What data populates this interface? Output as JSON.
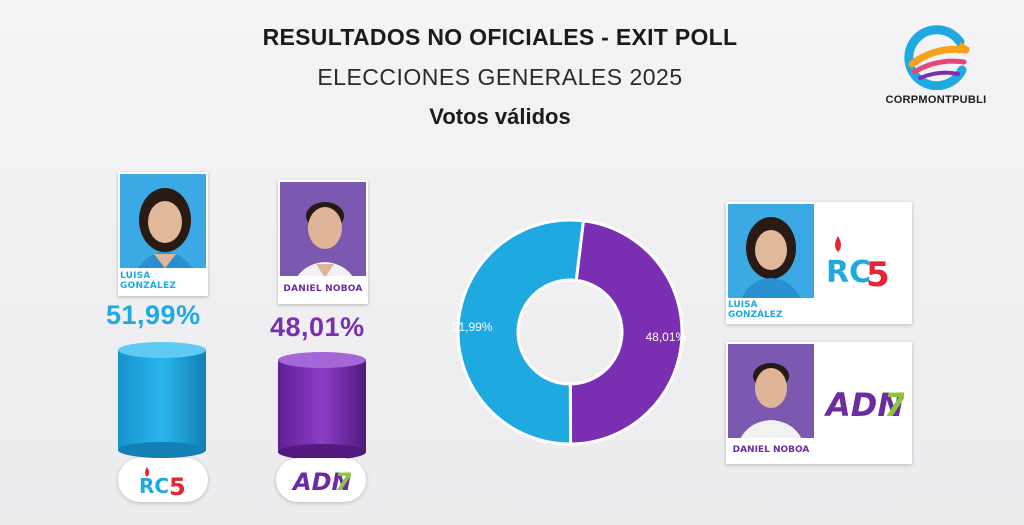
{
  "header": {
    "title": "RESULTADOS NO OFICIALES - EXIT POLL",
    "subtitle": "ELECCIONES GENERALES 2025",
    "subtitle2": "Votos válidos"
  },
  "brand": {
    "name": "CORPMONTPUBLI",
    "icon": "corpmontpubli-logo"
  },
  "colors": {
    "gonzalez": "#1fa9e1",
    "noboa": "#7a2fb3",
    "rc_red": "#e32636",
    "adn_green": "#8cc63f"
  },
  "candidates": [
    {
      "name": "LUISA GONZÁLEZ",
      "percent_label": "51,99%",
      "party_logo": "RC5"
    },
    {
      "name": "DANIEL NOBOA",
      "percent_label": "48,01%",
      "party_logo": "ADN7"
    }
  ],
  "chart_data": {
    "type": "pie",
    "title": "Votos válidos",
    "donut": true,
    "labels": [
      "LUISA GONZÁLEZ",
      "DANIEL NOBOA"
    ],
    "values": [
      51.99,
      48.01
    ],
    "data_labels": [
      "51,99%",
      "48,01%"
    ],
    "colors": [
      "#1fa9e1",
      "#7a2fb3"
    ]
  },
  "legend": [
    {
      "name": "LUISA GONZÁLEZ",
      "party_logo": "RC5"
    },
    {
      "name": "DANIEL NOBOA",
      "party_logo": "ADN7"
    }
  ]
}
